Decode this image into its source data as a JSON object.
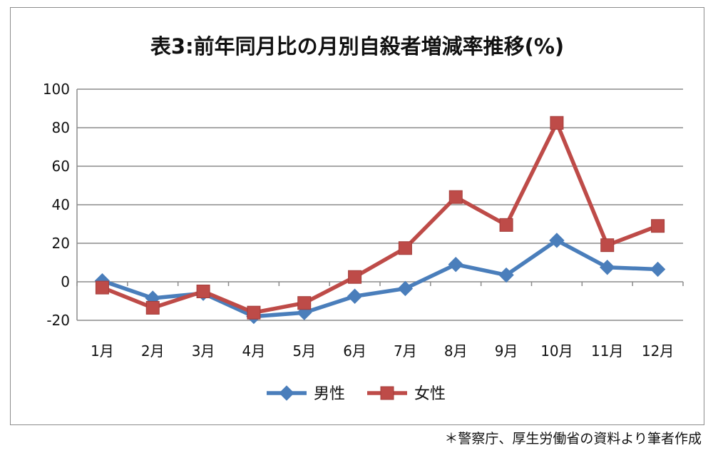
{
  "chart_data": {
    "type": "line",
    "title": "表3:前年同月比の月別自殺者増減率推移(%)",
    "categories": [
      "1月",
      "2月",
      "3月",
      "4月",
      "5月",
      "6月",
      "7月",
      "8月",
      "9月",
      "10月",
      "11月",
      "12月"
    ],
    "series": [
      {
        "name": "男性",
        "color": "#4a7ebb",
        "marker": "diamond",
        "values": [
          0.5,
          -8.5,
          -6,
          -18,
          -16,
          -7.5,
          -3.5,
          9,
          3.5,
          21.5,
          7.5,
          6.5
        ]
      },
      {
        "name": "女性",
        "color": "#be4b48",
        "marker": "square",
        "values": [
          -3,
          -13.5,
          -5,
          -16,
          -11,
          2.5,
          17.5,
          44,
          29.5,
          82.5,
          19,
          29
        ]
      }
    ],
    "ylim": [
      -20,
      100
    ],
    "yticks": [
      -20,
      0,
      20,
      40,
      60,
      80,
      100
    ],
    "grid": true,
    "legend": "bottom"
  },
  "footnote": "＊警察庁、厚生労働省の資料より筆者作成"
}
